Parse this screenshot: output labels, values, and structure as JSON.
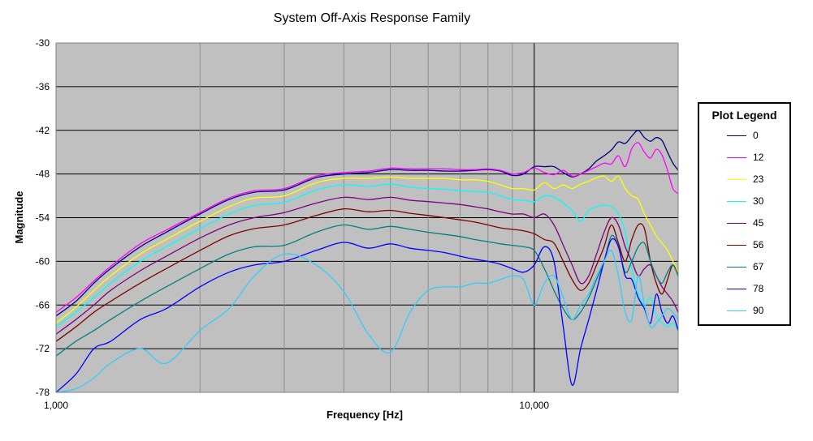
{
  "chart_data": {
    "type": "line",
    "title": "System Off-Axis Response Family",
    "xlabel": "Frequency [Hz]",
    "ylabel": "Magnitude",
    "x_scale": "log",
    "xlim": [
      1000,
      20000
    ],
    "ylim": [
      -78,
      -30
    ],
    "x_ticks": [
      "1,000",
      "10,000"
    ],
    "y_ticks": [
      "-30",
      "-36",
      "-42",
      "-48",
      "-54",
      "-60",
      "-66",
      "-72",
      "-78"
    ],
    "grid": true,
    "plot_background": "#c0c0c0",
    "legend": {
      "title": "Plot Legend",
      "position": "right"
    },
    "x": [
      1000,
      1100,
      1200,
      1300,
      1500,
      1700,
      2000,
      2300,
      2600,
      3000,
      3500,
      4000,
      4500,
      5000,
      5500,
      6000,
      6500,
      7000,
      7500,
      8000,
      8500,
      9000,
      9500,
      10000,
      10500,
      11000,
      11500,
      12000,
      12500,
      13000,
      13500,
      14000,
      14500,
      15000,
      15500,
      16000,
      16500,
      17000,
      17500,
      18000,
      18500,
      19000,
      19500,
      20000
    ],
    "series": [
      {
        "name": "0",
        "color": "#000080",
        "values": [
          -67.5,
          -65.5,
          -63,
          -61,
          -58,
          -56,
          -53.5,
          -51.5,
          -50.5,
          -50.2,
          -48.5,
          -48,
          -47.8,
          -47.4,
          -47.5,
          -47.5,
          -47.6,
          -47.6,
          -47.5,
          -47.4,
          -47.6,
          -48.2,
          -48,
          -47,
          -47,
          -47,
          -47.8,
          -48.4,
          -48,
          -47.3,
          -46.2,
          -45.5,
          -44.7,
          -43.6,
          -43.8,
          -42.8,
          -42,
          -43,
          -43.5,
          -43,
          -43.4,
          -45,
          -46.5,
          -47.5
        ]
      },
      {
        "name": "12",
        "color": "#ff00ff",
        "values": [
          -67,
          -65,
          -62.7,
          -60.7,
          -57.6,
          -55.7,
          -53.3,
          -51.3,
          -50.3,
          -50,
          -48.3,
          -47.8,
          -47.6,
          -47.2,
          -47.3,
          -47.3,
          -47.3,
          -47.4,
          -47.4,
          -47.3,
          -47.5,
          -48,
          -47.8,
          -47.2,
          -47.8,
          -48.1,
          -47.5,
          -48.3,
          -48,
          -47.5,
          -47,
          -46.5,
          -46.6,
          -45.5,
          -47,
          -44.5,
          -43.7,
          -45,
          -45.8,
          -44.6,
          -45.4,
          -47.5,
          -50,
          -50.7
        ]
      },
      {
        "name": "23",
        "color": "#ffff00",
        "values": [
          -68.5,
          -66.3,
          -64,
          -62,
          -59,
          -57,
          -54.5,
          -52.5,
          -51.3,
          -51,
          -49.2,
          -48.6,
          -48.6,
          -48.4,
          -48.6,
          -48.6,
          -48.6,
          -48.8,
          -48.8,
          -49,
          -49.5,
          -50,
          -50,
          -50.2,
          -49.2,
          -50,
          -49.5,
          -50,
          -49.4,
          -49,
          -48.5,
          -48.3,
          -49,
          -48.3,
          -50,
          -51,
          -51.5,
          -53.5,
          -55,
          -56.5,
          -57.5,
          -58.5,
          -60,
          -61.5
        ]
      },
      {
        "name": "30",
        "color": "#00ffff",
        "values": [
          -69,
          -67,
          -65,
          -63,
          -60,
          -58,
          -55.5,
          -53.5,
          -52.3,
          -51.9,
          -50.2,
          -49.5,
          -49.7,
          -49.4,
          -49.8,
          -50,
          -50.1,
          -50.3,
          -50.4,
          -50.5,
          -51,
          -51.5,
          -51.6,
          -51.8,
          -51,
          -51.2,
          -52,
          -53,
          -54.5,
          -53,
          -52.5,
          -52.3,
          -52.5,
          -53.5,
          -56,
          -61,
          -64.5,
          -66,
          -65,
          -67.5,
          -68.5,
          -69,
          -68.5,
          -69.5
        ]
      },
      {
        "name": "45",
        "color": "#800080",
        "values": [
          -70,
          -68,
          -66,
          -64,
          -61.3,
          -59.3,
          -56.8,
          -55,
          -54,
          -53.3,
          -52,
          -51.2,
          -51.5,
          -51.2,
          -51.6,
          -51.8,
          -52,
          -52.2,
          -52.5,
          -52.8,
          -53.2,
          -53.5,
          -53.5,
          -54,
          -53.5,
          -55,
          -57.8,
          -60.5,
          -63,
          -62,
          -59,
          -56,
          -54,
          -55,
          -58,
          -60,
          -62,
          -61,
          -60.5,
          -62,
          -63.5,
          -64.5,
          -65.5,
          -67
        ]
      },
      {
        "name": "56",
        "color": "#800000",
        "values": [
          -71,
          -69,
          -67,
          -65.5,
          -63,
          -61,
          -58.5,
          -56.5,
          -55.5,
          -55,
          -53.7,
          -52.8,
          -53.2,
          -53,
          -53.4,
          -53.7,
          -54,
          -54.3,
          -54.6,
          -55,
          -55.4,
          -55.6,
          -55.8,
          -56.2,
          -57,
          -57.5,
          -60,
          -62.5,
          -64,
          -63,
          -60.5,
          -58,
          -55,
          -57.5,
          -60,
          -57,
          -55,
          -55.5,
          -60,
          -63,
          -64.5,
          -62.5,
          -60.5,
          -62
        ]
      },
      {
        "name": "67",
        "color": "#008080",
        "values": [
          -73,
          -71,
          -69.5,
          -68,
          -65.5,
          -63.5,
          -61,
          -59,
          -58,
          -57.8,
          -56,
          -55,
          -55.6,
          -55.2,
          -55.6,
          -56,
          -56.3,
          -56.6,
          -57,
          -57.3,
          -57.6,
          -57.8,
          -58,
          -58.5,
          -61,
          -64,
          -66.5,
          -68,
          -67,
          -65,
          -62.5,
          -60,
          -56.5,
          -58,
          -61.5,
          -60,
          -58,
          -57.5,
          -60,
          -62,
          -63,
          -61.5,
          -60.5,
          -62
        ]
      },
      {
        "name": "78",
        "color": "#0000ff",
        "values": [
          -78,
          -75.5,
          -72,
          -71,
          -68,
          -66.5,
          -63.5,
          -61.5,
          -60.5,
          -60,
          -58.5,
          -57.4,
          -58.2,
          -57.6,
          -58.2,
          -58.5,
          -58.8,
          -59.3,
          -59.7,
          -60,
          -60.4,
          -61,
          -61.5,
          -60.5,
          -58,
          -60,
          -69,
          -77,
          -72,
          -68,
          -64,
          -60,
          -57,
          -58,
          -62,
          -62.5,
          -65,
          -66.5,
          -68.5,
          -64.5,
          -67,
          -68.5,
          -67.5,
          -69.5
        ]
      },
      {
        "name": "90",
        "color": "#33ccff",
        "values": [
          -78,
          -77.5,
          -76,
          -74,
          -72,
          -74,
          -69.5,
          -66.5,
          -62,
          -59,
          -60.5,
          -64.2,
          -70,
          -72.5,
          -67,
          -64,
          -63.5,
          -63.5,
          -63,
          -63,
          -62.5,
          -62,
          -62.5,
          -66,
          -63,
          -62,
          -65,
          -68,
          -66,
          -64.5,
          -62,
          -60,
          -58.5,
          -62,
          -67,
          -68,
          -62,
          -66,
          -69,
          -68.5,
          -67.5,
          -66.5,
          -67,
          -68
        ]
      }
    ]
  }
}
